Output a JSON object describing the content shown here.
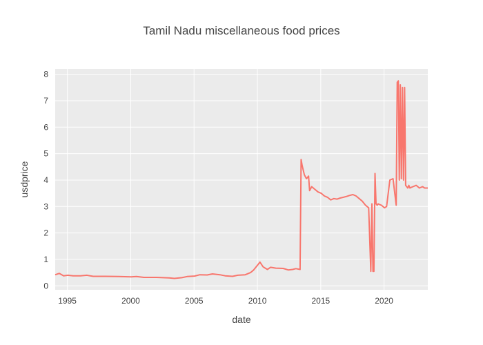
{
  "chart_data": {
    "type": "line",
    "title": "Tamil Nadu miscellaneous food prices",
    "xlabel": "date",
    "ylabel": "usdprice",
    "xlim": [
      "1994-01-15",
      "2023-06-15"
    ],
    "ylim": [
      -0.15,
      8.2
    ],
    "x_ticks": [
      "1995",
      "2000",
      "2005",
      "2010",
      "2015",
      "2020"
    ],
    "y_ticks": [
      "0",
      "1",
      "2",
      "3",
      "4",
      "5",
      "6",
      "7",
      "8"
    ],
    "grid": true,
    "background": "#ebebeb",
    "series": [
      {
        "color": "#f8766d",
        "x": [
          "1994-01-15",
          "1994-05-15",
          "1994-09-15",
          "1995-01-15",
          "1995-06-15",
          "1996-01-15",
          "1996-07-15",
          "1997-01-15",
          "1998-01-15",
          "1999-01-15",
          "2000-01-15",
          "2000-06-15",
          "2001-01-15",
          "2002-01-15",
          "2003-01-15",
          "2003-06-15",
          "2004-01-15",
          "2004-06-15",
          "2005-01-15",
          "2005-06-15",
          "2006-01-15",
          "2006-06-15",
          "2007-01-15",
          "2007-06-15",
          "2008-01-15",
          "2008-06-15",
          "2009-01-15",
          "2009-06-15",
          "2009-09-15",
          "2010-01-15",
          "2010-03-15",
          "2010-06-15",
          "2010-10-15",
          "2011-01-15",
          "2011-06-15",
          "2012-01-15",
          "2012-06-15",
          "2012-10-15",
          "2013-01-15",
          "2013-05-15",
          "2013-06-15",
          "2013-07-15",
          "2013-09-15",
          "2013-11-15",
          "2014-01-15",
          "2014-02-15",
          "2014-04-15",
          "2014-07-15",
          "2014-10-15",
          "2015-01-15",
          "2015-04-15",
          "2015-07-15",
          "2015-10-15",
          "2016-01-15",
          "2016-04-15",
          "2016-07-15",
          "2016-10-15",
          "2017-01-15",
          "2017-04-15",
          "2017-07-15",
          "2017-10-15",
          "2018-01-15",
          "2018-04-15",
          "2018-07-15",
          "2018-10-15",
          "2018-12-15",
          "2019-01-15",
          "2019-02-15",
          "2019-03-15",
          "2019-04-15",
          "2019-05-15",
          "2019-06-15",
          "2019-07-15",
          "2019-08-15",
          "2019-10-15",
          "2020-01-15",
          "2020-03-15",
          "2020-06-15",
          "2020-09-15",
          "2020-12-15",
          "2021-01-15",
          "2021-02-15",
          "2021-03-15",
          "2021-04-15",
          "2021-05-15",
          "2021-06-15",
          "2021-07-15",
          "2021-08-15",
          "2021-09-15",
          "2021-10-15",
          "2021-11-15",
          "2021-12-15",
          "2022-01-15",
          "2022-02-15",
          "2022-04-15",
          "2022-07-15",
          "2022-10-15",
          "2023-01-15",
          "2023-03-15",
          "2023-06-15"
        ],
        "y": [
          0.42,
          0.47,
          0.38,
          0.4,
          0.38,
          0.38,
          0.4,
          0.36,
          0.36,
          0.35,
          0.34,
          0.35,
          0.32,
          0.32,
          0.3,
          0.28,
          0.31,
          0.35,
          0.37,
          0.42,
          0.41,
          0.45,
          0.42,
          0.38,
          0.36,
          0.4,
          0.42,
          0.5,
          0.6,
          0.8,
          0.9,
          0.72,
          0.62,
          0.7,
          0.67,
          0.66,
          0.6,
          0.62,
          0.65,
          0.62,
          4.78,
          4.55,
          4.2,
          4.05,
          4.15,
          3.6,
          3.75,
          3.65,
          3.55,
          3.5,
          3.4,
          3.35,
          3.25,
          3.3,
          3.28,
          3.32,
          3.35,
          3.38,
          3.42,
          3.45,
          3.4,
          3.3,
          3.2,
          3.05,
          2.95,
          0.55,
          3.1,
          0.55,
          0.55,
          4.25,
          3.1,
          3.05,
          3.1,
          3.08,
          3.05,
          2.95,
          3.0,
          4.0,
          4.05,
          3.05,
          7.7,
          7.75,
          4.0,
          7.6,
          4.05,
          7.5,
          4.0,
          7.5,
          3.8,
          3.75,
          3.7,
          3.8,
          3.7,
          3.72,
          3.75,
          3.8,
          3.7,
          3.75,
          3.7,
          3.7
        ]
      }
    ]
  }
}
